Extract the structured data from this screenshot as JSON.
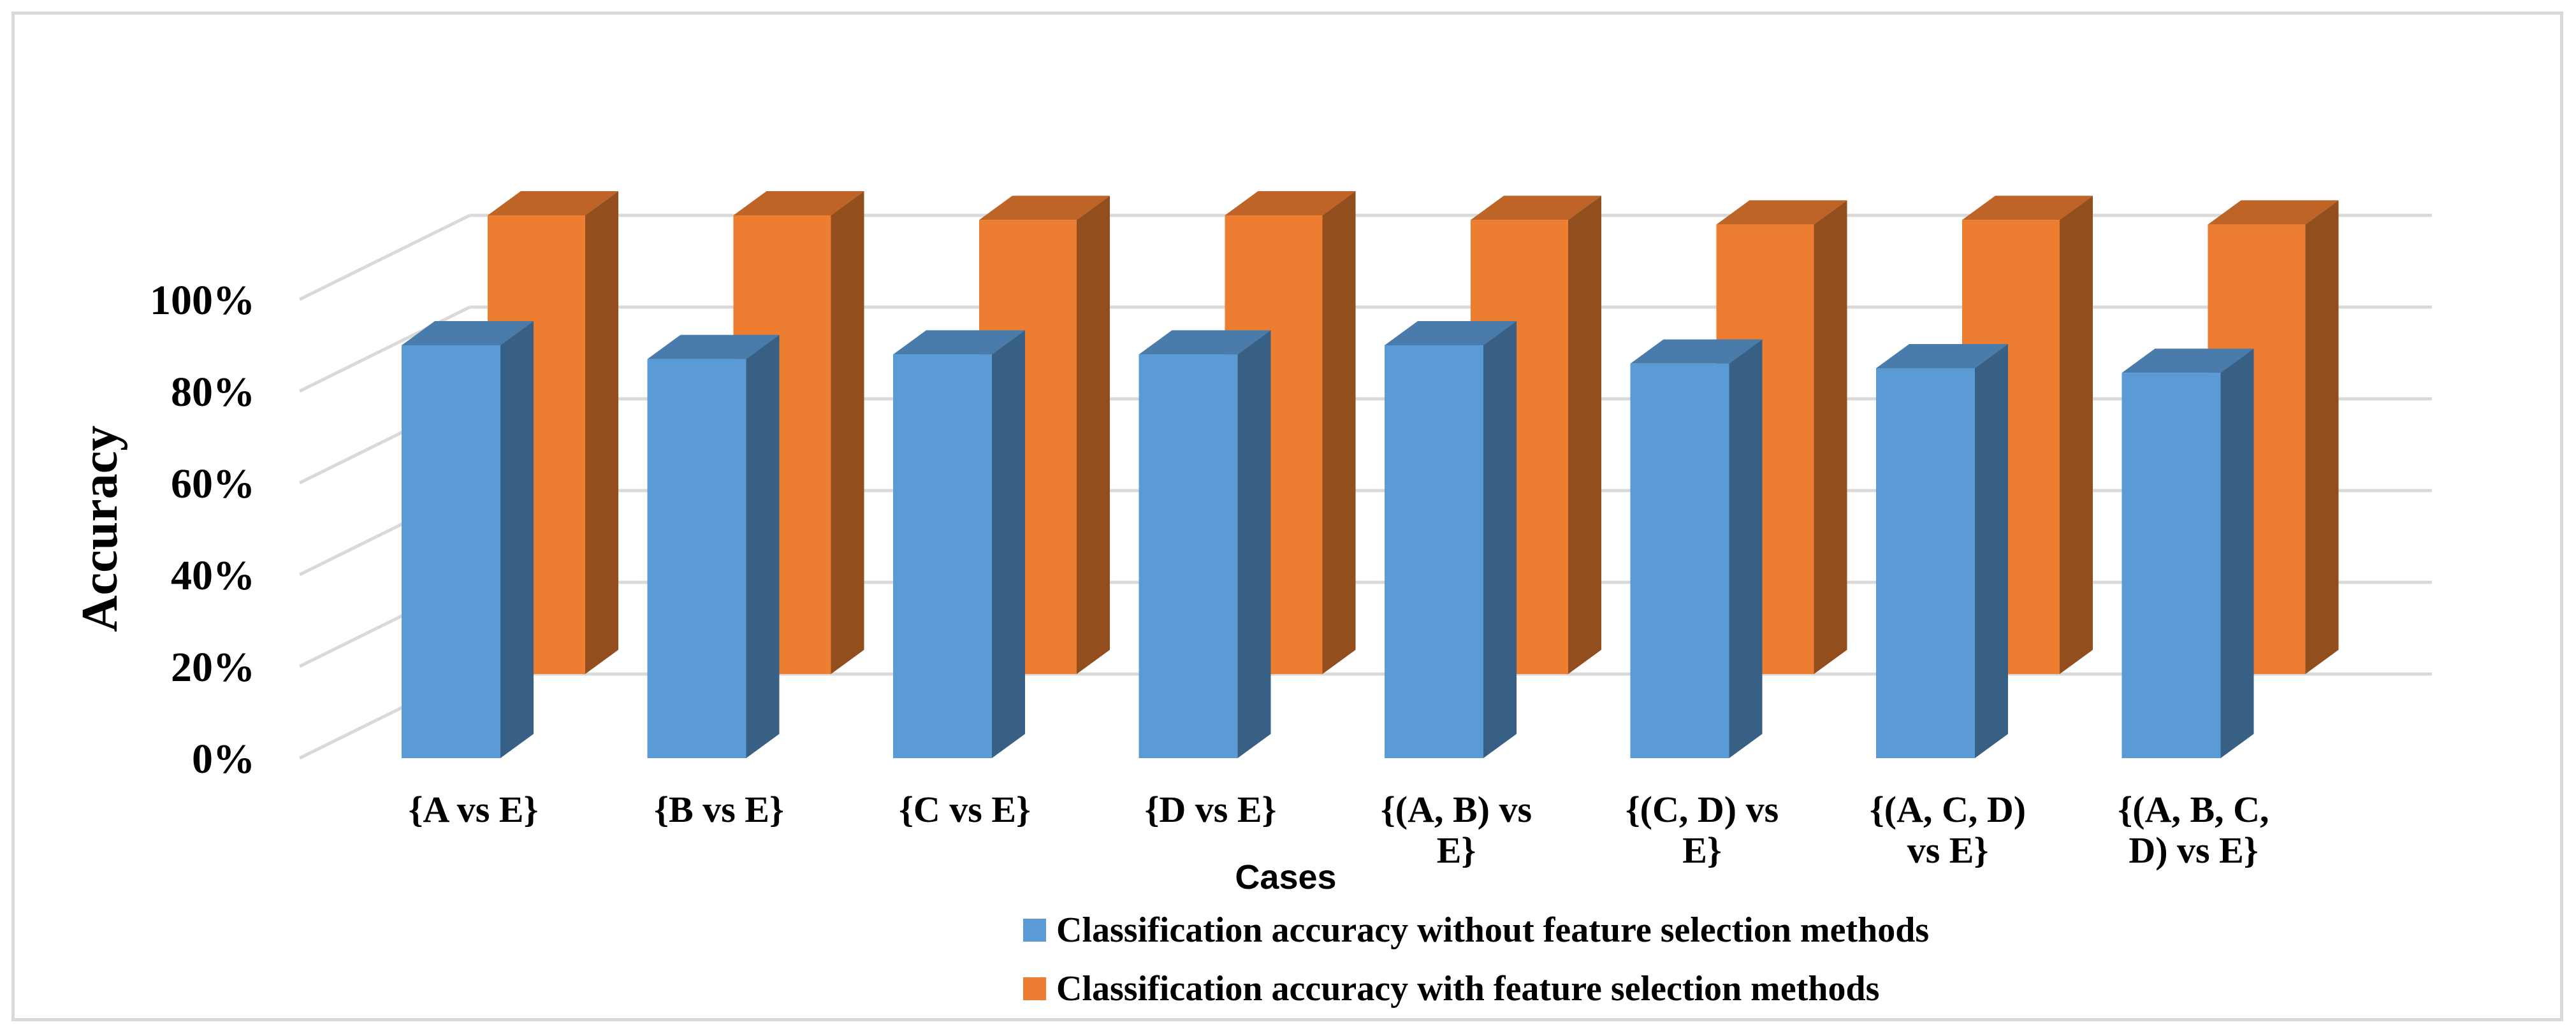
{
  "chart_data": {
    "type": "bar",
    "style": "3d-clustered-column",
    "title": "",
    "xlabel": "Cases",
    "ylabel": "Accuracy",
    "ylim": [
      0,
      100
    ],
    "yticks": [
      "0%",
      "20%",
      "40%",
      "60%",
      "80%",
      "100%"
    ],
    "categories": [
      [
        "{A vs E}"
      ],
      [
        "{B vs E}"
      ],
      [
        "{C vs E}"
      ],
      [
        "{D vs E}"
      ],
      [
        "{(A, B) vs",
        "E}"
      ],
      [
        "{(C, D) vs",
        "E}"
      ],
      [
        "{(A, C, D)",
        "vs E}"
      ],
      [
        "{(A, B, C,",
        "D) vs E}"
      ]
    ],
    "series": [
      {
        "name": "Classification accuracy without feature selection methods",
        "color": "#5b9bd5",
        "values": [
          90,
          87,
          88,
          88,
          90,
          86,
          85,
          84
        ]
      },
      {
        "name": "Classification accuracy with feature selection methods",
        "color": "#ed7d31",
        "values": [
          100,
          100,
          99,
          100,
          99,
          98,
          99,
          98
        ]
      }
    ],
    "grid": true,
    "legend": "bottom"
  }
}
